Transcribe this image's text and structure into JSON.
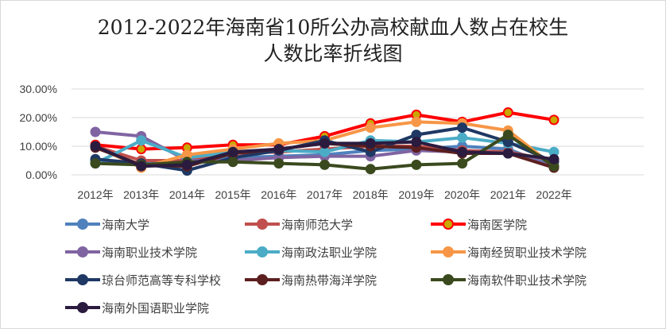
{
  "chart_data": {
    "type": "line",
    "title_line1": "2012-2022年海南省10所公办高校献血人数占在校生",
    "title_line2": "人数比率折线图",
    "xlabel": "",
    "ylabel": "",
    "ylim": [
      0,
      0.3
    ],
    "yticks": [
      "0.00%",
      "10.00%",
      "20.00%",
      "30.00%"
    ],
    "ytick_values": [
      0,
      0.1,
      0.2,
      0.3
    ],
    "grid": true,
    "legend_position": "bottom",
    "categories": [
      "2012年",
      "2013年",
      "2014年",
      "2015年",
      "2016年",
      "2017年",
      "2018年",
      "2019年",
      "2020年",
      "2021年",
      "2022年"
    ],
    "series": [
      {
        "name": "海南大学",
        "color": "#4f81bd",
        "marker_face": "#4f81bd",
        "values": [
          0.05,
          0.04,
          0.045,
          0.06,
          0.065,
          0.07,
          0.085,
          0.09,
          0.1,
          0.09,
          0.03
        ]
      },
      {
        "name": "海南师范大学",
        "color": "#c0504d",
        "marker_face": "#c0504d",
        "values": [
          0.1,
          0.05,
          0.05,
          0.075,
          0.08,
          0.09,
          0.1,
          0.1,
          0.085,
          0.08,
          0.05
        ]
      },
      {
        "name": "海南医学院",
        "color": "#ff0000",
        "marker_face": "#c9a800",
        "values": [
          0.105,
          0.09,
          0.095,
          0.105,
          0.105,
          0.135,
          0.18,
          0.21,
          0.185,
          0.218,
          0.192
        ]
      },
      {
        "name": "海南职业技术学院",
        "color": "#8064a2",
        "marker_face": "#8064a2",
        "values": [
          0.15,
          0.135,
          0.05,
          0.05,
          0.06,
          0.065,
          0.065,
          0.085,
          0.08,
          0.075,
          0.03
        ]
      },
      {
        "name": "海南政法职业学院",
        "color": "#4bacc6",
        "marker_face": "#4bacc6",
        "values": [
          0.04,
          0.12,
          0.06,
          0.08,
          0.085,
          0.08,
          0.12,
          0.115,
          0.13,
          0.11,
          0.08
        ]
      },
      {
        "name": "海南经贸职业技术学院",
        "color": "#f79646",
        "marker_face": "#f79646",
        "values": [
          0.1,
          0.025,
          0.07,
          0.09,
          0.11,
          0.12,
          0.165,
          0.185,
          0.18,
          0.155,
          0.03
        ]
      },
      {
        "name": "琼台师范高等专科学校",
        "color": "#1f3864",
        "marker_face": "#1f3864",
        "values": [
          0.055,
          0.04,
          0.015,
          0.06,
          0.085,
          0.12,
          0.08,
          0.14,
          0.165,
          0.115,
          0.045
        ]
      },
      {
        "name": "海南热带海洋学院",
        "color": "#5c1f1f",
        "marker_face": "#5c1f1f",
        "values": [
          0.095,
          0.035,
          0.03,
          0.075,
          0.09,
          0.11,
          0.1,
          0.095,
          0.075,
          0.075,
          0.025
        ]
      },
      {
        "name": "海南软件职业技术学院",
        "color": "#3b4a1e",
        "marker_face": "#3b4a1e",
        "values": [
          0.04,
          0.035,
          0.045,
          0.045,
          0.04,
          0.035,
          0.02,
          0.035,
          0.04,
          0.14,
          0.03
        ]
      },
      {
        "name": "海南外国语职业学院",
        "color": "#2b1b3f",
        "marker_face": "#2b1b3f",
        "values": [
          0.1,
          0.03,
          0.035,
          0.08,
          0.09,
          0.11,
          0.11,
          0.115,
          0.08,
          0.075,
          0.055
        ]
      }
    ]
  }
}
